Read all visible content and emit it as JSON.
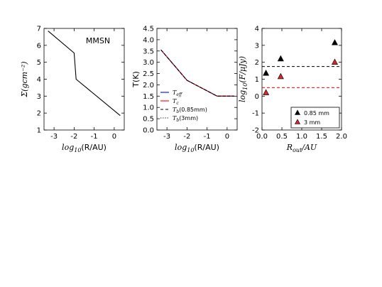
{
  "chart_data": [
    {
      "type": "line",
      "panel_label": "MMSN",
      "xlabel_prefix": "log",
      "xlabel_sub": "10",
      "xlabel_rest": "(R/AU)",
      "ylabel": "Σ(gcm⁻²)",
      "xlim": [
        -3.5,
        0.5
      ],
      "ylim": [
        1,
        7
      ],
      "xticks": [
        "-3",
        "-2",
        "-1",
        "0"
      ],
      "yticks": [
        "1",
        "2",
        "3",
        "4",
        "5",
        "6",
        "7"
      ],
      "series": [
        {
          "color": "#000000",
          "style": "solid",
          "x": [
            -3.3,
            -2.0,
            -1.9,
            0.3
          ],
          "y": [
            6.85,
            5.55,
            4.0,
            1.85
          ]
        }
      ]
    },
    {
      "type": "line",
      "xlabel_prefix": "log",
      "xlabel_sub": "10",
      "xlabel_rest": "(R/AU)",
      "ylabel": "T(K)",
      "xlim": [
        -3.5,
        0.5
      ],
      "ylim": [
        0,
        4.5
      ],
      "xticks": [
        "-3",
        "-2",
        "-1",
        "0"
      ],
      "yticks": [
        "0.0",
        "0.5",
        "1.0",
        "1.5",
        "2.0",
        "2.5",
        "3.0",
        "3.5",
        "4.0",
        "4.5"
      ],
      "legend": "lower-left",
      "series": [
        {
          "name": "T_eff",
          "label_main": "T",
          "label_sub": "eff",
          "color": "#0000ff",
          "style": "solid",
          "x": [
            -3.3,
            -2.0,
            -0.5,
            0.35
          ],
          "y": [
            3.55,
            2.2,
            1.5,
            1.5
          ]
        },
        {
          "name": "T_c",
          "label_main": "T",
          "label_sub": "c",
          "color": "#ff0000",
          "style": "solid",
          "x": [
            -3.3,
            -2.0,
            -0.5,
            0.35
          ],
          "y": [
            3.55,
            2.2,
            1.5,
            1.5
          ]
        },
        {
          "name": "T_b(0.85mm)",
          "label_main": "T",
          "label_sub": "b",
          "label_rest": "(0.85mm)",
          "color": "#000000",
          "style": "dashed",
          "x": [
            -3.3,
            -2.0,
            -0.5,
            0.35
          ],
          "y": [
            3.55,
            2.2,
            1.5,
            1.5
          ]
        },
        {
          "name": "T_b(3mm)",
          "label_main": "T",
          "label_sub": "b",
          "label_rest": "(3mm)",
          "color": "#000000",
          "style": "dotted",
          "x": [
            -3.3,
            -2.0,
            -0.5,
            0.35
          ],
          "y": [
            3.55,
            2.2,
            1.5,
            1.5
          ]
        }
      ]
    },
    {
      "type": "scatter",
      "xlabel": "R_out/AU",
      "xlabel_main": "R",
      "xlabel_sub": "out",
      "xlabel_rest": "/AU",
      "ylabel": "log10(F/μJy)",
      "ylabel_main": "log",
      "ylabel_sub": "10",
      "ylabel_rest": "(F/μJy)",
      "xlim": [
        0,
        2.0
      ],
      "ylim": [
        -2,
        4
      ],
      "xticks": [
        "0.0",
        "0.5",
        "1.0",
        "1.5",
        "2.0"
      ],
      "yticks": [
        "-2",
        "-1",
        "0",
        "1",
        "2",
        "3",
        "4"
      ],
      "legend": "lower-right",
      "series": [
        {
          "name": "0.85 mm",
          "color": "#000000",
          "marker": "triangle",
          "x": [
            0.1,
            0.47,
            1.83
          ],
          "y": [
            1.35,
            2.2,
            3.15
          ]
        },
        {
          "name": "3 mm",
          "color": "#d62728",
          "marker": "triangle",
          "x": [
            0.1,
            0.47,
            1.83
          ],
          "y": [
            0.2,
            1.15,
            2.0
          ]
        }
      ],
      "hlines": [
        {
          "y": 1.75,
          "color": "#000000",
          "style": "dashed"
        },
        {
          "y": 0.5,
          "color": "#ff0000",
          "style": "dashed"
        }
      ]
    }
  ]
}
